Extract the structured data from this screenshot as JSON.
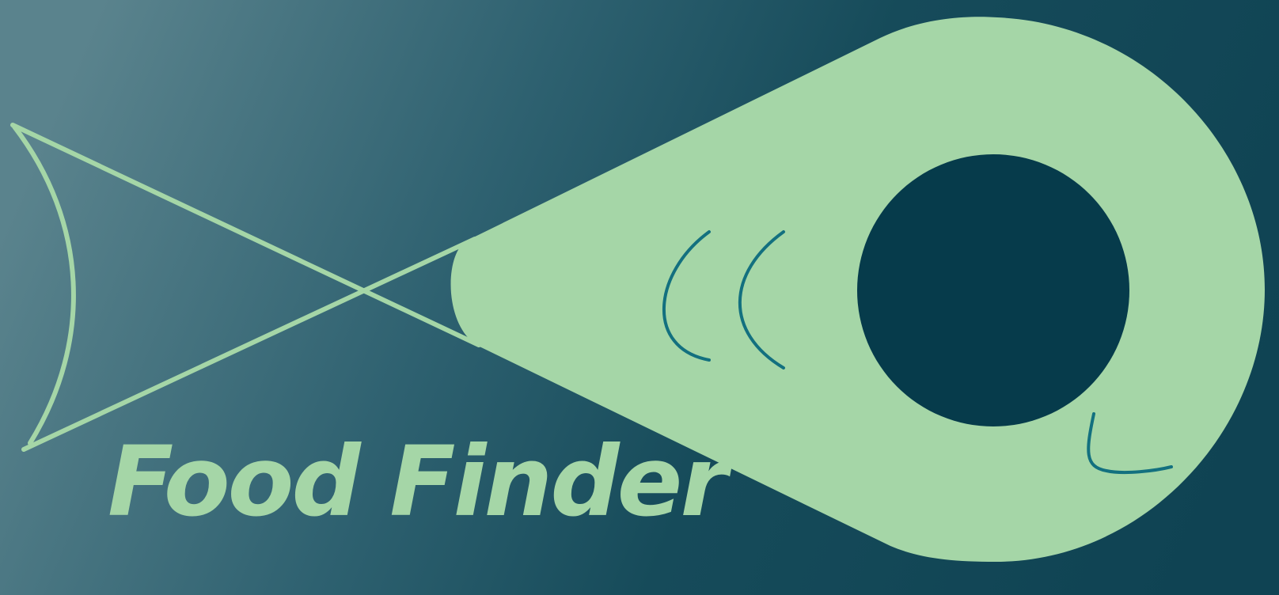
{
  "logo": {
    "title": "Food Finder",
    "icon": "fish-map-pin-icon"
  },
  "colors": {
    "background_light": "#5a838d",
    "background_mid": "#2b5f6b",
    "background_dark": "#0f4353",
    "primary_green": "#a5d6a7",
    "eye_dark": "#053a4a",
    "accent_teal": "#13707f"
  }
}
